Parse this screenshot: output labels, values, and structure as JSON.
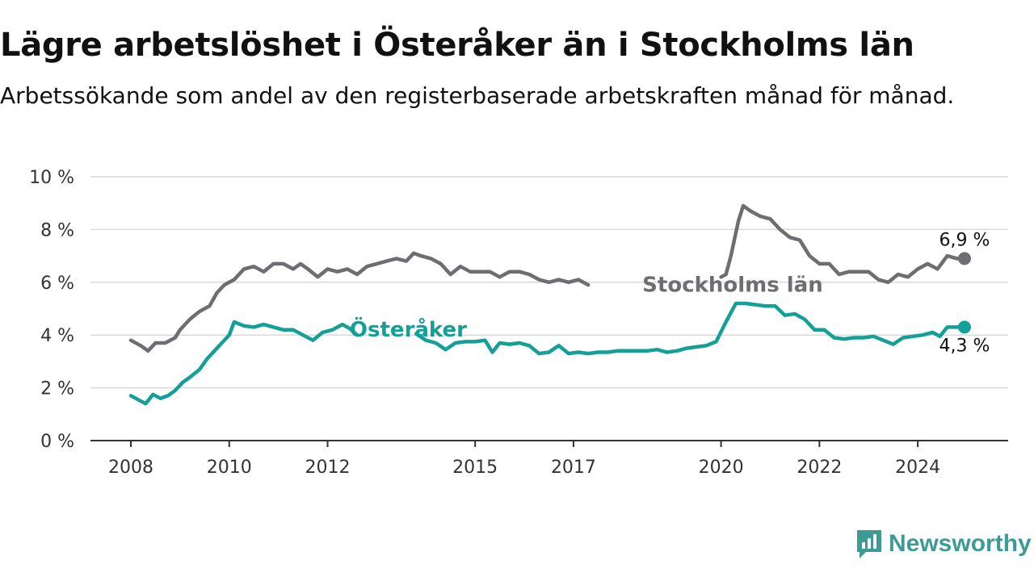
{
  "title": "Lägre arbetslöshet i Österåker än i Stockholms län",
  "subtitle": "Arbetssökande som andel av den registerbaserade arbetskraften månad för månad.",
  "brand": "Newsworthy",
  "colors": {
    "stockholm": "#6e6d72",
    "osteraker": "#14a096",
    "grid": "#d9d9d9",
    "axis": "#333333",
    "brand": "#3c9c95"
  },
  "chart_data": {
    "type": "line",
    "title": "Lägre arbetslöshet i Österåker än i Stockholms län",
    "subtitle": "Arbetssökande som andel av den registerbaserade arbetskraften månad för månad.",
    "xlabel": "",
    "ylabel": "",
    "xlim": [
      2008.0,
      2025.0
    ],
    "ylim": [
      0,
      10
    ],
    "y_ticks": [
      0,
      2,
      4,
      6,
      8,
      10
    ],
    "y_tick_labels": [
      "0 %",
      "2 %",
      "4 %",
      "6 %",
      "8 %",
      "10 %"
    ],
    "x_ticks": [
      2008,
      2010,
      2012,
      2015,
      2017,
      2020,
      2022,
      2024
    ],
    "x_tick_labels": [
      "2008",
      "2010",
      "2012",
      "2015",
      "2017",
      "2020",
      "2022",
      "2024"
    ],
    "grid": true,
    "legend": "none",
    "series": [
      {
        "name": "Stockholms län",
        "color": "#6e6d72",
        "label_position": [
          2018.4,
          5.95
        ],
        "end_label": "6,9 %",
        "points": [
          [
            2008.0,
            3.8
          ],
          [
            2008.2,
            3.6
          ],
          [
            2008.35,
            3.4
          ],
          [
            2008.5,
            3.7
          ],
          [
            2008.7,
            3.7
          ],
          [
            2008.9,
            3.9
          ],
          [
            2009.0,
            4.2
          ],
          [
            2009.2,
            4.6
          ],
          [
            2009.4,
            4.9
          ],
          [
            2009.6,
            5.1
          ],
          [
            2009.75,
            5.6
          ],
          [
            2009.9,
            5.9
          ],
          [
            2010.1,
            6.1
          ],
          [
            2010.3,
            6.5
          ],
          [
            2010.5,
            6.6
          ],
          [
            2010.7,
            6.4
          ],
          [
            2010.9,
            6.7
          ],
          [
            2011.1,
            6.7
          ],
          [
            2011.3,
            6.5
          ],
          [
            2011.45,
            6.7
          ],
          [
            2011.6,
            6.5
          ],
          [
            2011.8,
            6.2
          ],
          [
            2012.0,
            6.5
          ],
          [
            2012.2,
            6.4
          ],
          [
            2012.4,
            6.5
          ],
          [
            2012.6,
            6.3
          ],
          [
            2012.8,
            6.6
          ],
          [
            2013.0,
            6.7
          ],
          [
            2013.2,
            6.8
          ],
          [
            2013.4,
            6.9
          ],
          [
            2013.6,
            6.8
          ],
          [
            2013.75,
            7.1
          ],
          [
            2013.9,
            7.0
          ],
          [
            2014.1,
            6.9
          ],
          [
            2014.3,
            6.7
          ],
          [
            2014.5,
            6.3
          ],
          [
            2014.7,
            6.6
          ],
          [
            2014.9,
            6.4
          ],
          [
            2015.1,
            6.4
          ],
          [
            2015.3,
            6.4
          ],
          [
            2015.5,
            6.2
          ],
          [
            2015.7,
            6.4
          ],
          [
            2015.9,
            6.4
          ],
          [
            2016.1,
            6.3
          ],
          [
            2016.3,
            6.1
          ],
          [
            2016.5,
            6.0
          ],
          [
            2016.7,
            6.1
          ],
          [
            2016.9,
            6.0
          ],
          [
            2017.1,
            6.1
          ],
          [
            2017.3,
            5.9
          ]
        ],
        "points_after_label": [
          [
            2020.0,
            6.2
          ],
          [
            2020.1,
            6.3
          ],
          [
            2020.2,
            7.0
          ],
          [
            2020.35,
            8.3
          ],
          [
            2020.45,
            8.9
          ],
          [
            2020.6,
            8.7
          ],
          [
            2020.8,
            8.5
          ],
          [
            2021.0,
            8.4
          ],
          [
            2021.2,
            8.0
          ],
          [
            2021.4,
            7.7
          ],
          [
            2021.6,
            7.6
          ],
          [
            2021.8,
            7.0
          ],
          [
            2022.0,
            6.7
          ],
          [
            2022.2,
            6.7
          ],
          [
            2022.4,
            6.3
          ],
          [
            2022.6,
            6.4
          ],
          [
            2022.8,
            6.4
          ],
          [
            2023.0,
            6.4
          ],
          [
            2023.2,
            6.1
          ],
          [
            2023.4,
            6.0
          ],
          [
            2023.6,
            6.3
          ],
          [
            2023.8,
            6.2
          ],
          [
            2024.0,
            6.5
          ],
          [
            2024.2,
            6.7
          ],
          [
            2024.4,
            6.5
          ],
          [
            2024.6,
            7.0
          ],
          [
            2024.8,
            6.9
          ],
          [
            2024.95,
            6.9
          ]
        ]
      },
      {
        "name": "Österåker",
        "color": "#14a096",
        "label_position": [
          2012.45,
          4.25
        ],
        "end_label": "4,3 %",
        "points": [
          [
            2008.0,
            1.7
          ],
          [
            2008.15,
            1.55
          ],
          [
            2008.3,
            1.4
          ],
          [
            2008.45,
            1.75
          ],
          [
            2008.6,
            1.6
          ],
          [
            2008.75,
            1.7
          ],
          [
            2008.9,
            1.9
          ],
          [
            2009.05,
            2.2
          ],
          [
            2009.2,
            2.4
          ],
          [
            2009.4,
            2.7
          ],
          [
            2009.55,
            3.1
          ],
          [
            2009.7,
            3.4
          ],
          [
            2009.85,
            3.7
          ],
          [
            2010.0,
            4.0
          ],
          [
            2010.1,
            4.5
          ],
          [
            2010.3,
            4.35
          ],
          [
            2010.5,
            4.3
          ],
          [
            2010.7,
            4.4
          ],
          [
            2010.9,
            4.3
          ],
          [
            2011.1,
            4.2
          ],
          [
            2011.3,
            4.2
          ],
          [
            2011.5,
            4.0
          ],
          [
            2011.7,
            3.8
          ],
          [
            2011.9,
            4.1
          ],
          [
            2012.1,
            4.2
          ],
          [
            2012.3,
            4.4
          ],
          [
            2012.45,
            4.25
          ],
          [
            2012.6,
            4.0
          ]
        ],
        "points_after_label": [
          [
            2013.8,
            4.05
          ],
          [
            2014.0,
            3.8
          ],
          [
            2014.2,
            3.7
          ],
          [
            2014.4,
            3.45
          ],
          [
            2014.6,
            3.7
          ],
          [
            2014.8,
            3.75
          ],
          [
            2015.0,
            3.75
          ],
          [
            2015.2,
            3.8
          ],
          [
            2015.35,
            3.35
          ],
          [
            2015.5,
            3.7
          ],
          [
            2015.7,
            3.65
          ],
          [
            2015.9,
            3.7
          ],
          [
            2016.1,
            3.6
          ],
          [
            2016.3,
            3.3
          ],
          [
            2016.5,
            3.35
          ],
          [
            2016.7,
            3.6
          ],
          [
            2016.9,
            3.3
          ],
          [
            2017.1,
            3.35
          ],
          [
            2017.3,
            3.3
          ],
          [
            2017.5,
            3.35
          ],
          [
            2017.7,
            3.35
          ],
          [
            2017.9,
            3.4
          ],
          [
            2018.1,
            3.4
          ],
          [
            2018.3,
            3.4
          ],
          [
            2018.5,
            3.4
          ],
          [
            2018.7,
            3.45
          ],
          [
            2018.9,
            3.35
          ],
          [
            2019.1,
            3.4
          ],
          [
            2019.3,
            3.5
          ],
          [
            2019.5,
            3.55
          ],
          [
            2019.7,
            3.6
          ],
          [
            2019.9,
            3.75
          ],
          [
            2020.1,
            4.5
          ],
          [
            2020.3,
            5.2
          ],
          [
            2020.5,
            5.2
          ],
          [
            2020.7,
            5.15
          ],
          [
            2020.9,
            5.1
          ],
          [
            2021.1,
            5.1
          ],
          [
            2021.3,
            4.75
          ],
          [
            2021.5,
            4.8
          ],
          [
            2021.7,
            4.6
          ],
          [
            2021.9,
            4.2
          ],
          [
            2022.1,
            4.2
          ],
          [
            2022.3,
            3.9
          ],
          [
            2022.5,
            3.85
          ],
          [
            2022.7,
            3.9
          ],
          [
            2022.9,
            3.9
          ],
          [
            2023.1,
            3.95
          ],
          [
            2023.3,
            3.8
          ],
          [
            2023.5,
            3.65
          ],
          [
            2023.7,
            3.9
          ],
          [
            2023.9,
            3.95
          ],
          [
            2024.1,
            4.0
          ],
          [
            2024.3,
            4.1
          ],
          [
            2024.45,
            3.95
          ],
          [
            2024.6,
            4.3
          ],
          [
            2024.8,
            4.3
          ],
          [
            2024.95,
            4.3
          ]
        ]
      }
    ]
  }
}
